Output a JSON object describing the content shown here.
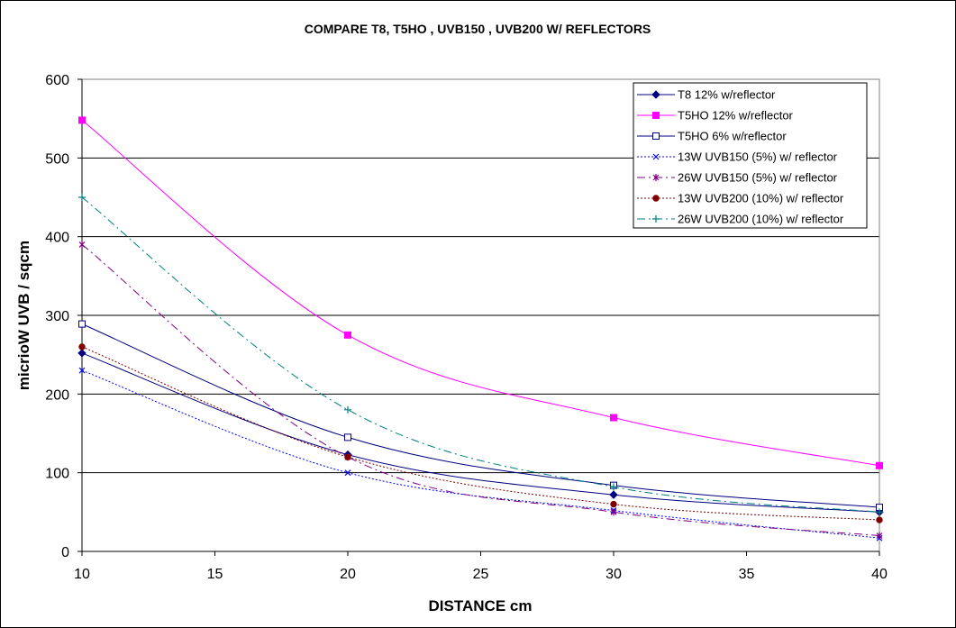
{
  "chart_data": {
    "type": "line",
    "title": "COMPARE T8, T5HO , UVB150 , UVB200 W/ REFLECTORS",
    "xlabel": "DISTANCE cm",
    "ylabel": "micrioW UVB / sqcm",
    "xlim": [
      10,
      40
    ],
    "ylim": [
      0,
      600
    ],
    "xticks": [
      10,
      15,
      20,
      25,
      30,
      35,
      40
    ],
    "yticks": [
      0,
      100,
      200,
      300,
      400,
      500,
      600
    ],
    "grid": "horizontal",
    "legend_position": "top-right",
    "x": [
      10,
      20,
      30,
      40
    ],
    "series": [
      {
        "name": "T8 12% w/reflector",
        "values": [
          252,
          123,
          72,
          50
        ],
        "color": "#000080",
        "dash": "solid",
        "marker": "diamond-filled"
      },
      {
        "name": "T5HO 12% w/reflector",
        "values": [
          548,
          275,
          170,
          109
        ],
        "color": "#ff00ff",
        "dash": "solid",
        "marker": "square-filled"
      },
      {
        "name": "T5HO 6% w/reflector",
        "values": [
          289,
          145,
          84,
          56
        ],
        "color": "#000080",
        "dash": "solid",
        "marker": "square-open"
      },
      {
        "name": "13W UVB150 (5%) w/ reflector",
        "values": [
          230,
          100,
          52,
          17
        ],
        "color": "#0000ff",
        "dash": "dot",
        "marker": "x"
      },
      {
        "name": "26W UVB150 (5%) w/ reflector",
        "values": [
          390,
          120,
          50,
          20
        ],
        "color": "#800080",
        "dash": "dashdot",
        "marker": "star"
      },
      {
        "name": "13W UVB200 (10%) w/ reflector",
        "values": [
          260,
          120,
          60,
          40
        ],
        "color": "#800000",
        "dash": "dot",
        "marker": "circle-filled"
      },
      {
        "name": "26W UVB200 (10%) w/ reflector",
        "values": [
          450,
          180,
          82,
          50
        ],
        "color": "#008080",
        "dash": "dashdot",
        "marker": "plus"
      }
    ]
  }
}
